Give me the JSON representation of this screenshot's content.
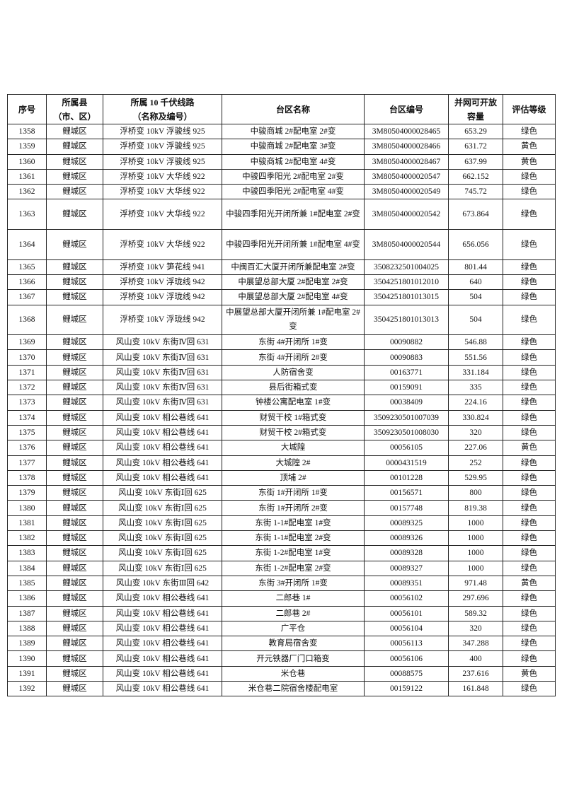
{
  "table": {
    "headers": [
      "序号",
      "所属县\n（市、区）",
      "所属10千伏线路\n（名称及编号）",
      "台区名称",
      "台区编号",
      "并网可开放\n容量",
      "评估等级"
    ],
    "header_lines": [
      [
        "序号"
      ],
      [
        "所属县",
        "（市、区）"
      ],
      [
        "所属 10 千伏线路",
        "（名称及编号）"
      ],
      [
        "台区名称"
      ],
      [
        "台区编号"
      ],
      [
        "并网可开放",
        "容量"
      ],
      [
        "评估等级"
      ]
    ],
    "rows": [
      [
        "1358",
        "鲤城区",
        "浮桥变 10kV 浮骏线 925",
        "中骏商城 2#配电室 2#变",
        "3M80504000028465",
        "653.29",
        "绿色"
      ],
      [
        "1359",
        "鲤城区",
        "浮桥变 10kV 浮骏线 925",
        "中骏商城 2#配电室 3#变",
        "3M80504000028466",
        "631.72",
        "黄色"
      ],
      [
        "1360",
        "鲤城区",
        "浮桥变 10kV 浮骏线 925",
        "中骏商城 2#配电室 4#变",
        "3M80504000028467",
        "637.99",
        "黄色"
      ],
      [
        "1361",
        "鲤城区",
        "浮桥变 10kV 大华线 922",
        "中骏四季阳光 2#配电室 2#变",
        "3M80504000020547",
        "662.152",
        "绿色"
      ],
      [
        "1362",
        "鲤城区",
        "浮桥变 10kV 大华线 922",
        "中骏四季阳光 2#配电室 4#变",
        "3M80504000020549",
        "745.72",
        "绿色"
      ],
      [
        "1363",
        "鲤城区",
        "浮桥变 10kV 大华线 922",
        "中骏四季阳光开闭所兼 1#配电室 2#变",
        "3M80504000020542",
        "673.864",
        "绿色"
      ],
      [
        "1364",
        "鲤城区",
        "浮桥变 10kV 大华线 922",
        "中骏四季阳光开闭所兼 1#配电室 4#变",
        "3M80504000020544",
        "656.056",
        "绿色"
      ],
      [
        "1365",
        "鲤城区",
        "浮桥变 10kV 笋花线 941",
        "中闽百汇大厦开闭所兼配电室 2#变",
        "3508232501004025",
        "801.44",
        "绿色"
      ],
      [
        "1366",
        "鲤城区",
        "浮桥变 10kV 浮珑线 942",
        "中展望总部大厦 2#配电室 2#变",
        "3504251801012010",
        "640",
        "绿色"
      ],
      [
        "1367",
        "鲤城区",
        "浮桥变 10kV 浮珑线 942",
        "中展望总部大厦 2#配电室 4#变",
        "3504251801013015",
        "504",
        "绿色"
      ],
      [
        "1368",
        "鲤城区",
        "浮桥变 10kV 浮珑线 942",
        "中展望总部大厦开闭所兼 1#配电室 2#变",
        "3504251801013013",
        "504",
        "绿色"
      ],
      [
        "1369",
        "鲤城区",
        "风山变 10kV 东街Ⅳ回 631",
        "东街 4#开闭所 1#变",
        "00090882",
        "546.88",
        "绿色"
      ],
      [
        "1370",
        "鲤城区",
        "风山变 10kV 东街Ⅳ回 631",
        "东街 4#开闭所 2#变",
        "00090883",
        "551.56",
        "绿色"
      ],
      [
        "1371",
        "鲤城区",
        "风山变 10kV 东街Ⅳ回 631",
        "人防宿舍变",
        "00163771",
        "331.184",
        "绿色"
      ],
      [
        "1372",
        "鲤城区",
        "风山变 10kV 东街Ⅳ回 631",
        "县后街箱式变",
        "00159091",
        "335",
        "绿色"
      ],
      [
        "1373",
        "鲤城区",
        "风山变 10kV 东街Ⅳ回 631",
        "钟楼公寓配电室 1#变",
        "00038409",
        "224.16",
        "绿色"
      ],
      [
        "1374",
        "鲤城区",
        "风山变 10kV 相公巷线 641",
        "财贸干校 1#箱式变",
        "3509230501007039",
        "330.824",
        "绿色"
      ],
      [
        "1375",
        "鲤城区",
        "风山变 10kV 相公巷线 641",
        "财贸干校 2#箱式变",
        "3509230501008030",
        "320",
        "绿色"
      ],
      [
        "1376",
        "鲤城区",
        "风山变 10kV 相公巷线 641",
        "大城隍",
        "00056105",
        "227.06",
        "黄色"
      ],
      [
        "1377",
        "鲤城区",
        "风山变 10kV 相公巷线 641",
        "大城隍 2#",
        "0000431519",
        "252",
        "绿色"
      ],
      [
        "1378",
        "鲤城区",
        "风山变 10kV 相公巷线 641",
        "顶埔 2#",
        "00101228",
        "529.95",
        "绿色"
      ],
      [
        "1379",
        "鲤城区",
        "风山变 10kV 东街Ⅰ回 625",
        "东街 1#开闭所 1#变",
        "00156571",
        "800",
        "绿色"
      ],
      [
        "1380",
        "鲤城区",
        "风山变 10kV 东街Ⅰ回 625",
        "东街 1#开闭所 2#变",
        "00157748",
        "819.38",
        "绿色"
      ],
      [
        "1381",
        "鲤城区",
        "风山变 10kV 东街Ⅰ回 625",
        "东街 1-1#配电室 1#变",
        "00089325",
        "1000",
        "绿色"
      ],
      [
        "1382",
        "鲤城区",
        "风山变 10kV 东街Ⅰ回 625",
        "东街 1-1#配电室 2#变",
        "00089326",
        "1000",
        "绿色"
      ],
      [
        "1383",
        "鲤城区",
        "风山变 10kV 东街Ⅰ回 625",
        "东街 1-2#配电室 1#变",
        "00089328",
        "1000",
        "绿色"
      ],
      [
        "1384",
        "鲤城区",
        "风山变 10kV 东街Ⅰ回 625",
        "东街 1-2#配电室 2#变",
        "00089327",
        "1000",
        "绿色"
      ],
      [
        "1385",
        "鲤城区",
        "风山变 10kV 东街Ⅲ回 642",
        "东街 3#开闭所 1#变",
        "00089351",
        "971.48",
        "黄色"
      ],
      [
        "1386",
        "鲤城区",
        "风山变 10kV 相公巷线 641",
        "二郎巷 1#",
        "00056102",
        "297.696",
        "绿色"
      ],
      [
        "1387",
        "鲤城区",
        "风山变 10kV 相公巷线 641",
        "二郎巷 2#",
        "00056101",
        "589.32",
        "绿色"
      ],
      [
        "1388",
        "鲤城区",
        "风山变 10kV 相公巷线 641",
        "广平仓",
        "00056104",
        "320",
        "绿色"
      ],
      [
        "1389",
        "鲤城区",
        "风山变 10kV 相公巷线 641",
        "教育局宿舍变",
        "00056113",
        "347.288",
        "绿色"
      ],
      [
        "1390",
        "鲤城区",
        "风山变 10kV 相公巷线 641",
        "开元铁器厂门口箱变",
        "00056106",
        "400",
        "绿色"
      ],
      [
        "1391",
        "鲤城区",
        "风山变 10kV 相公巷线 641",
        "米仓巷",
        "00088575",
        "237.616",
        "黄色"
      ],
      [
        "1392",
        "鲤城区",
        "风山变 10kV 相公巷线 641",
        "米仓巷二院宿舍楼配电室",
        "00159122",
        "161.848",
        "绿色"
      ]
    ]
  }
}
